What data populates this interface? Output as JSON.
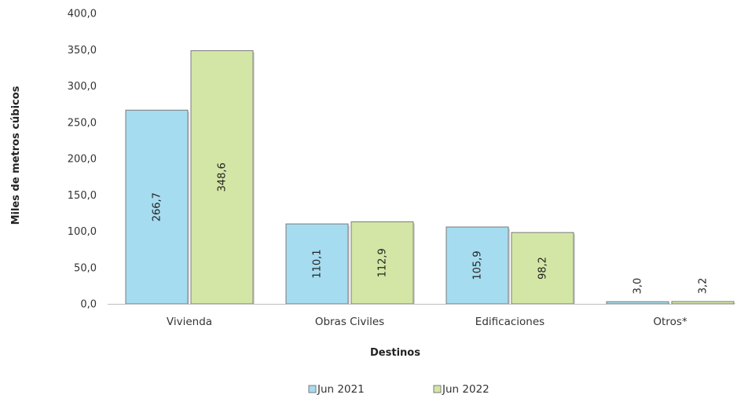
{
  "chart_data": {
    "type": "bar",
    "categories": [
      "Vivienda",
      "Obras Civiles",
      "Edificaciones",
      "Otros*"
    ],
    "series": [
      {
        "name": "Jun 2021",
        "values": [
          266.7,
          110.1,
          105.9,
          3.0
        ],
        "labels": [
          "266,7",
          "110,1",
          "105,9",
          "3,0"
        ],
        "color": "#a6dcef"
      },
      {
        "name": "Jun 2022",
        "values": [
          348.6,
          112.9,
          98.2,
          3.2
        ],
        "labels": [
          "348,6",
          "112,9",
          "98,2",
          "3,2"
        ],
        "color": "#d4e6a5"
      }
    ],
    "xlabel": "Destinos",
    "ylabel": "Miles de metros cúbicos",
    "ylim": [
      0,
      400
    ],
    "yticks": [
      0,
      50,
      100,
      150,
      200,
      250,
      300,
      350,
      400
    ],
    "ytick_labels": [
      "0,0",
      "50,0",
      "100,0",
      "150,0",
      "200,0",
      "250,0",
      "300,0",
      "350,0",
      "400,0"
    ],
    "grid": false,
    "legend_position": "bottom",
    "data_label_orientation": "vertical",
    "colors": {
      "bar_outline": "#7a7a7a",
      "axis": "#bfbfbf"
    }
  }
}
